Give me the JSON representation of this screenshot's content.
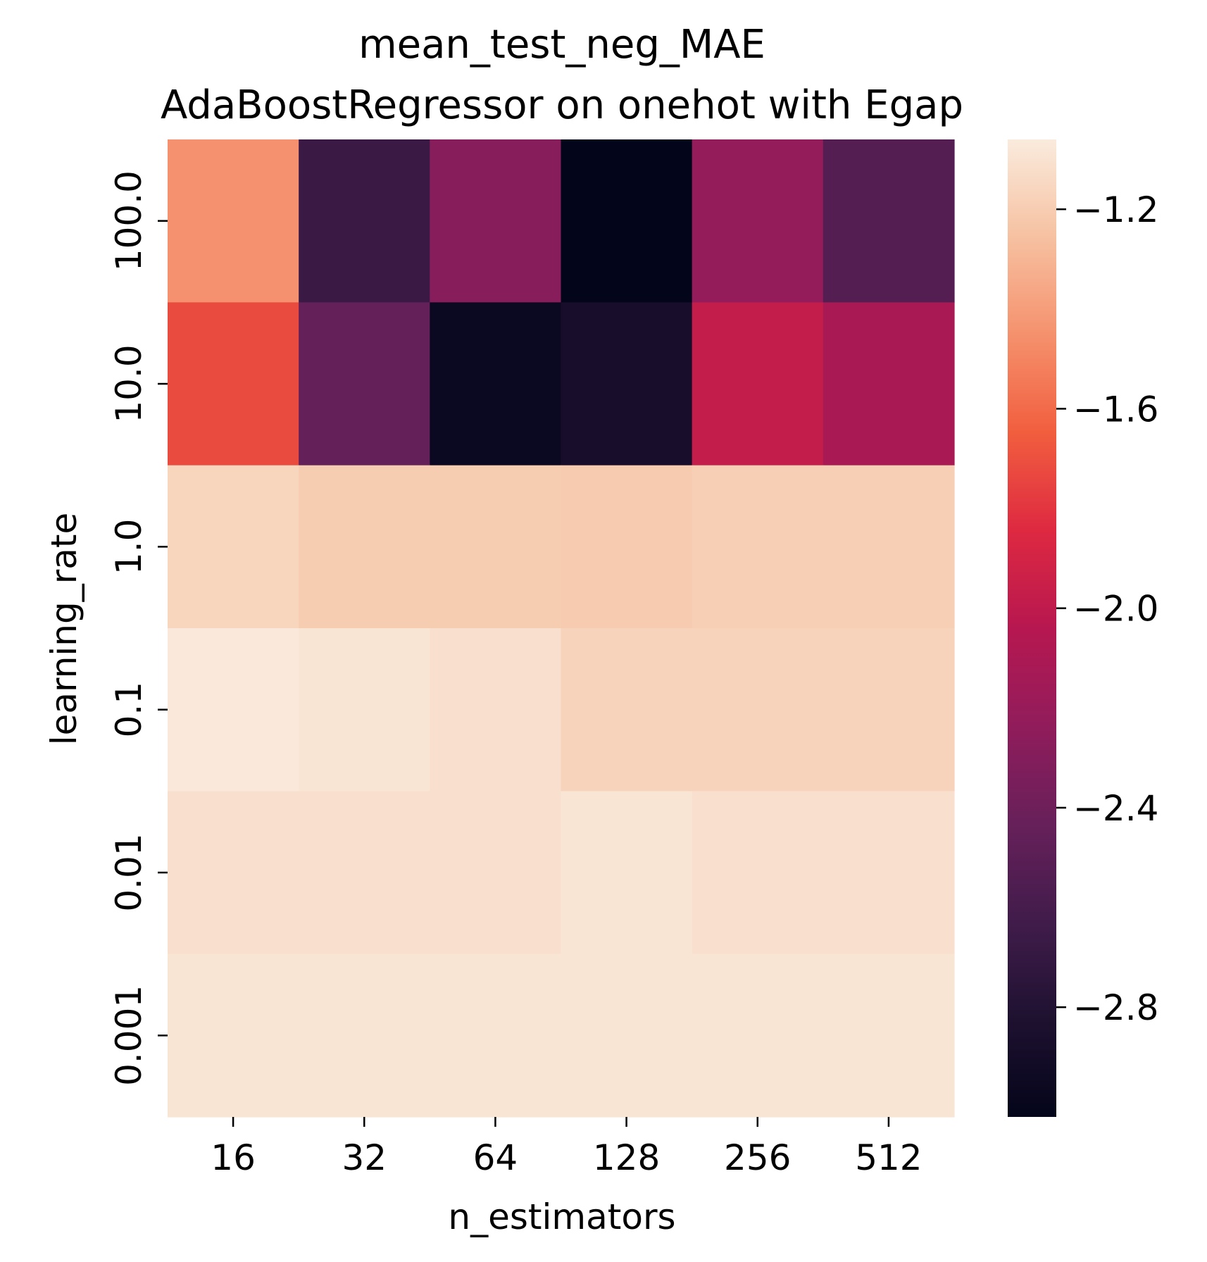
{
  "chart_data": {
    "type": "heatmap",
    "title": "mean_test_neg_MAE",
    "subtitle": "AdaBoostRegressor on onehot with Egap",
    "xlabel": "n_estimators",
    "ylabel": "learning_rate",
    "x_categories": [
      "16",
      "32",
      "64",
      "128",
      "256",
      "512"
    ],
    "y_categories": [
      "100.0",
      "10.0",
      "1.0",
      "0.1",
      "0.01",
      "0.001"
    ],
    "values": [
      [
        -1.45,
        -2.67,
        -2.28,
        -3.02,
        -2.22,
        -2.53
      ],
      [
        -1.72,
        -2.45,
        -2.96,
        -2.87,
        -1.98,
        -2.11
      ],
      [
        -1.16,
        -1.2,
        -1.2,
        -1.21,
        -1.19,
        -1.19
      ],
      [
        -1.07,
        -1.09,
        -1.11,
        -1.17,
        -1.17,
        -1.17
      ],
      [
        -1.11,
        -1.11,
        -1.11,
        -1.09,
        -1.11,
        -1.11
      ],
      [
        -1.09,
        -1.09,
        -1.09,
        -1.09,
        -1.09,
        -1.09
      ]
    ],
    "colormap": "rocket",
    "colorbar": {
      "ticks": [
        -1.2,
        -1.6,
        -2.0,
        -2.4,
        -2.8
      ],
      "tick_labels": [
        "−1.2",
        "−1.6",
        "−2.0",
        "−2.4",
        "−2.8"
      ],
      "min": -3.02,
      "max": -1.06
    },
    "grid": false,
    "legend": "colorbar-right"
  }
}
